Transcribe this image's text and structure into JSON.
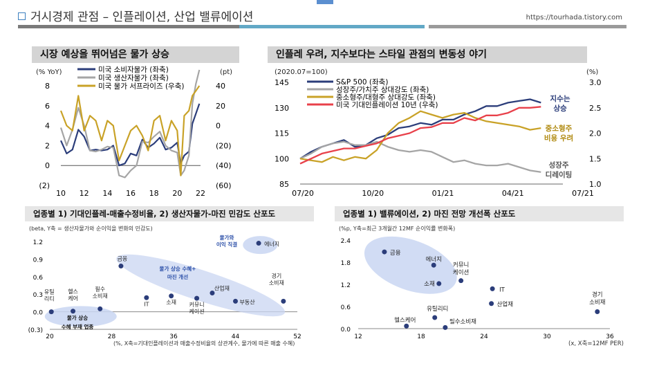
{
  "header": {
    "title": "거시경제 관점 – 인플레이션, 산업 밸류에이션",
    "url": "https://tourhada.tistory.com",
    "colors": {
      "bar1": "#7a7a7a",
      "bar2": "#62a8c6",
      "bar3": "#9a9a9a",
      "accent": "#5b8fd0"
    }
  },
  "chart_data": [
    {
      "type": "line",
      "title": "시장 예상을 뛰어넘은 물가 상승",
      "ylabel_left": "(% YoY)",
      "ylabel_right": "(pt)",
      "x_ticks": [
        "10",
        "12",
        "14",
        "16",
        "18",
        "20",
        "22"
      ],
      "y_left_ticks": [
        "8",
        "6",
        "4",
        "2",
        "0",
        "(2)"
      ],
      "y_right_ticks": [
        "40",
        "20",
        "0",
        "(20)",
        "(40)",
        "(60)"
      ],
      "xlim": [
        2010,
        2022
      ],
      "ylim_left": [
        -2,
        8
      ],
      "ylim_right": [
        -60,
        40
      ],
      "x": [
        2010.0,
        2010.5,
        2011.0,
        2011.5,
        2012.0,
        2012.5,
        2013.0,
        2013.5,
        2014.0,
        2014.5,
        2015.0,
        2015.5,
        2016.0,
        2016.5,
        2017.0,
        2017.5,
        2018.0,
        2018.5,
        2019.0,
        2019.5,
        2020.0,
        2020.3,
        2020.6,
        2021.0,
        2021.3,
        2021.6,
        2021.9
      ],
      "series": [
        {
          "name": "미국 소비자물가 (좌축)",
          "axis": "left",
          "color": "#2b3d7a",
          "values": [
            2.5,
            1.2,
            1.6,
            3.6,
            2.9,
            1.5,
            1.6,
            1.5,
            1.6,
            2.0,
            0.0,
            0.2,
            1.2,
            1.0,
            2.6,
            1.8,
            2.2,
            2.8,
            1.6,
            1.8,
            2.3,
            0.2,
            1.0,
            1.4,
            4.2,
            5.2,
            6.2
          ]
        },
        {
          "name": "미국 생산자물가 (좌축)",
          "axis": "left",
          "color": "#a5a5a5",
          "values": [
            3.8,
            2.0,
            3.6,
            5.8,
            4.0,
            1.5,
            1.4,
            1.6,
            1.9,
            1.8,
            -1.0,
            -1.2,
            -0.5,
            0.0,
            2.4,
            2.3,
            2.9,
            3.4,
            2.0,
            1.5,
            1.3,
            -1.0,
            -0.5,
            1.0,
            6.2,
            8.2,
            9.6
          ]
        },
        {
          "name": "미국 물가 서프라이즈 (우축)",
          "axis": "right",
          "color": "#c9a227",
          "values": [
            15,
            0,
            -5,
            30,
            -5,
            10,
            5,
            -15,
            5,
            0,
            -35,
            -20,
            -5,
            0,
            -10,
            -25,
            5,
            10,
            -15,
            5,
            -5,
            -50,
            10,
            15,
            30,
            35,
            40
          ]
        }
      ]
    },
    {
      "type": "line",
      "title": "인플레 우려, 지수보다는 스타일 관점의 변동성 야기",
      "ylabel_left": "(2020.07=100)",
      "ylabel_right": "(%)",
      "x_ticks": [
        "07/20",
        "10/20",
        "01/21",
        "04/21",
        "07/21"
      ],
      "y_left_ticks": [
        "145",
        "130",
        "115",
        "100",
        "85"
      ],
      "y_right_ticks": [
        "3.0",
        "2.5",
        "2.0",
        "1.5",
        "1.0"
      ],
      "xlim": [
        0,
        12
      ],
      "ylim_left": [
        85,
        145
      ],
      "ylim_right": [
        1.0,
        3.0
      ],
      "annotations": [
        "지수는 상승",
        "중소형주 비용 우려",
        "성장주 디레이팅"
      ],
      "x": [
        0,
        0.5,
        1,
        1.5,
        2,
        2.5,
        3,
        3.5,
        4,
        4.5,
        5,
        5.5,
        6,
        6.5,
        7,
        7.5,
        8,
        8.5,
        9,
        9.5,
        10,
        10.5,
        11
      ],
      "series": [
        {
          "name": "S&P 500 (좌축)",
          "axis": "left",
          "color": "#2b3d7a",
          "values": [
            100,
            104,
            107,
            109,
            111,
            107,
            108,
            112,
            114,
            118,
            119,
            121,
            120,
            123,
            123,
            126,
            128,
            131,
            131,
            133,
            134,
            135,
            133
          ]
        },
        {
          "name": "성장주/가치주 상대강도 (좌축)",
          "axis": "left",
          "color": "#a5a5a5",
          "values": [
            100,
            103,
            107,
            109,
            110,
            108,
            108,
            110,
            107,
            105,
            104,
            105,
            104,
            101,
            98,
            99,
            97,
            96,
            96,
            97,
            95,
            93,
            92
          ]
        },
        {
          "name": "중소형주/대형주 상대강도 (좌축)",
          "axis": "left",
          "color": "#c9a227",
          "values": [
            100,
            99,
            98,
            101,
            99,
            101,
            100,
            105,
            115,
            121,
            124,
            128,
            126,
            124,
            126,
            127,
            124,
            122,
            121,
            120,
            119,
            117,
            118
          ]
        },
        {
          "name": "미국 기대인플레이션 10년 (우축)",
          "axis": "right",
          "color": "#e8404a",
          "values": [
            1.4,
            1.5,
            1.6,
            1.65,
            1.7,
            1.7,
            1.75,
            1.8,
            1.9,
            1.95,
            2.0,
            2.1,
            2.12,
            2.2,
            2.2,
            2.3,
            2.25,
            2.35,
            2.35,
            2.4,
            2.5,
            2.5,
            2.52
          ]
        }
      ]
    },
    {
      "type": "scatter",
      "title": "업종별 1) 기대인플레-매출수정비율, 2) 생산자물가-마진 민감도 산포도",
      "subtitle": "(beta, Y축 = 생산자물가와 순이익을 변화의 민감도)",
      "xlabel": "(%, X축=기대인플레이션과  매출수정비율의 상관계수, 물가에 따른 매출 수혜)",
      "x_ticks": [
        "20",
        "28",
        "36",
        "44",
        "52"
      ],
      "y_ticks": [
        "1.2",
        "0.9",
        "0.6",
        "0.3",
        "0.0",
        "(0.3)"
      ],
      "xlim": [
        20,
        52
      ],
      "ylim": [
        -0.3,
        1.2
      ],
      "group_labels": [
        "물가와 이익 직결",
        "물가 상승 수혜+ 마진 개선",
        "물가 상승 수혜 부재 업종"
      ],
      "points": [
        {
          "label": "유틸 리티",
          "x": 20.2,
          "y": 0.0
        },
        {
          "label": "헬스 케어",
          "x": 23.0,
          "y": 0.01
        },
        {
          "label": "필수 소비재",
          "x": 26.5,
          "y": 0.05
        },
        {
          "label": "금융",
          "x": 29.2,
          "y": 0.78
        },
        {
          "label": "IT",
          "x": 32.5,
          "y": 0.24
        },
        {
          "label": "소재",
          "x": 35.7,
          "y": 0.27
        },
        {
          "label": "커뮤니 케이션",
          "x": 39.0,
          "y": 0.23
        },
        {
          "label": "산업재",
          "x": 41.0,
          "y": 0.32
        },
        {
          "label": "부동산",
          "x": 44.0,
          "y": 0.18
        },
        {
          "label": "경기 소비재",
          "x": 50.2,
          "y": 0.18
        },
        {
          "label": "에너지",
          "x": 47.0,
          "y": 1.17
        }
      ]
    },
    {
      "type": "scatter",
      "title": "업종별 1) 밸류에이션, 2) 마진 전망 개선폭 산포도",
      "subtitle": "(%p, Y축=최근 3개월간 12MF 순이익률 변화폭)",
      "xlabel": "(x, X축=12MF PER)",
      "x_ticks": [
        "12",
        "18",
        "24",
        "30",
        "36"
      ],
      "y_ticks": [
        "2.4",
        "1.8",
        "1.2",
        "0.6",
        "0.0"
      ],
      "xlim": [
        12,
        36
      ],
      "ylim": [
        0.0,
        2.4
      ],
      "points": [
        {
          "label": "금융",
          "x": 14.5,
          "y": 2.08
        },
        {
          "label": "에너지",
          "x": 19.2,
          "y": 1.72
        },
        {
          "label": "소재",
          "x": 19.7,
          "y": 1.22
        },
        {
          "label": "커뮤니 케이션",
          "x": 21.8,
          "y": 1.3
        },
        {
          "label": "IT",
          "x": 24.8,
          "y": 1.08
        },
        {
          "label": "산업재",
          "x": 24.7,
          "y": 0.68
        },
        {
          "label": "유틸리티",
          "x": 19.3,
          "y": 0.3
        },
        {
          "label": "헬스케어",
          "x": 16.6,
          "y": 0.07
        },
        {
          "label": "필수소비재",
          "x": 20.3,
          "y": 0.03
        },
        {
          "label": "경기 소비재",
          "x": 34.8,
          "y": 0.46
        }
      ]
    }
  ]
}
